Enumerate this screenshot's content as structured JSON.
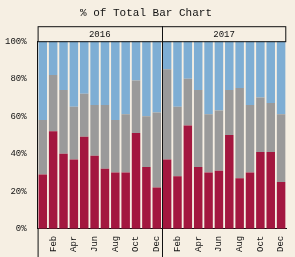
{
  "chart_data": {
    "type": "bar",
    "title": "% of Total Bar Chart",
    "categories": [
      null,
      "Feb",
      null,
      "Apr",
      null,
      "Jun",
      null,
      "Aug",
      null,
      "Oct",
      null,
      "Dec",
      null,
      "Feb",
      null,
      "Apr",
      null,
      "Jun",
      null,
      "Aug",
      null,
      "Oct",
      null,
      "Dec"
    ],
    "x_groups": [
      "2016",
      "2017"
    ],
    "stacked": true,
    "grid": false,
    "series": [
      {
        "color": "#a3173f",
        "values": [
          29,
          52,
          40,
          37,
          49,
          39,
          32,
          30,
          30,
          51,
          33,
          22,
          37,
          28,
          55,
          33,
          30,
          31,
          50,
          27,
          30,
          41,
          41,
          25
        ]
      },
      {
        "color": "#9a9a9a",
        "values": [
          29,
          30,
          34,
          28,
          23,
          27,
          34,
          28,
          31,
          28,
          27,
          40,
          48,
          37,
          25,
          41,
          31,
          32,
          24,
          48,
          36,
          29,
          26,
          36
        ]
      },
      {
        "color": "#7eaed4",
        "values": [
          42,
          18,
          26,
          35,
          28,
          34,
          34,
          42,
          39,
          21,
          40,
          38,
          15,
          35,
          20,
          26,
          39,
          37,
          26,
          25,
          34,
          30,
          33,
          39
        ]
      }
    ],
    "ylim": [
      0,
      100
    ],
    "yticks": [
      {
        "value": 0,
        "label": "0%"
      },
      {
        "value": 20,
        "label": "20%"
      },
      {
        "value": 40,
        "label": "40%"
      },
      {
        "value": 60,
        "label": "60%"
      },
      {
        "value": 80,
        "label": "80%"
      },
      {
        "value": 100,
        "label": "100%"
      }
    ]
  }
}
